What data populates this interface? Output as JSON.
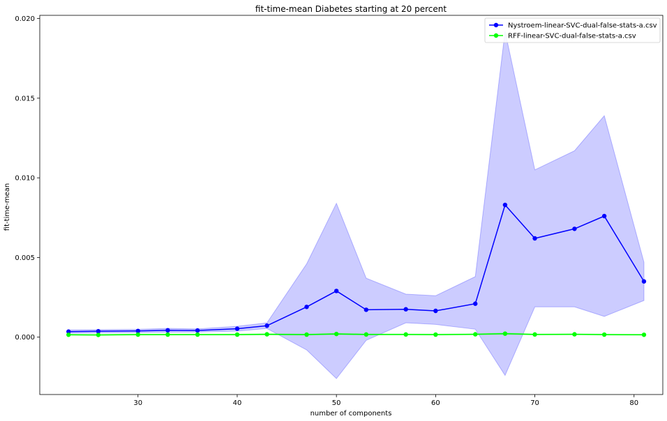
{
  "chart_data": {
    "type": "line",
    "title": "fit-time-mean Diabetes starting at 20 percent",
    "xlabel": "number of components",
    "ylabel": "fit-time-mean",
    "xlim": [
      20.1,
      82.9
    ],
    "ylim": [
      -0.0036,
      0.0202
    ],
    "xticks": [
      30,
      40,
      50,
      60,
      70,
      80
    ],
    "xtick_labels": [
      "30",
      "40",
      "50",
      "60",
      "70",
      "80"
    ],
    "yticks": [
      0.0,
      0.005,
      0.01,
      0.015,
      0.02
    ],
    "ytick_labels": [
      "0.000",
      "0.005",
      "0.010",
      "0.015",
      "0.020"
    ],
    "grid": false,
    "legend_position": "top-right",
    "x": [
      23,
      26,
      30,
      33,
      36,
      40,
      43,
      47,
      50,
      53,
      57,
      60,
      64,
      67,
      70,
      74,
      77,
      81
    ],
    "series": [
      {
        "name": "Nystroem-linear-SVC-dual-false-stats-a.csv",
        "color": "#0000ff",
        "band_color": "#0000ff",
        "values": [
          0.00035,
          0.00037,
          0.00039,
          0.00043,
          0.00042,
          0.00053,
          0.00072,
          0.0019,
          0.0029,
          0.00172,
          0.00175,
          0.00165,
          0.0021,
          0.0083,
          0.0062,
          0.0068,
          0.0076,
          0.0035
        ],
        "upper": [
          0.00045,
          0.00047,
          0.00049,
          0.00055,
          0.00052,
          0.00068,
          0.0009,
          0.0046,
          0.0084,
          0.0037,
          0.0027,
          0.0026,
          0.0038,
          0.0192,
          0.0105,
          0.0117,
          0.0139,
          0.0047
        ],
        "lower": [
          0.00025,
          0.00027,
          0.00029,
          0.00031,
          0.00032,
          0.00038,
          0.00054,
          -0.0008,
          -0.0026,
          -0.0002,
          0.0009,
          0.0008,
          0.0005,
          -0.0024,
          0.0019,
          0.0019,
          0.0013,
          0.0023
        ]
      },
      {
        "name": "RFF-linear-SVC-dual-false-stats-a.csv",
        "color": "#00ff00",
        "band_color": "#00ff00",
        "values": [
          0.00015,
          0.00014,
          0.00016,
          0.00016,
          0.00016,
          0.00016,
          0.00018,
          0.00016,
          0.0002,
          0.00017,
          0.00017,
          0.00016,
          0.00018,
          0.00022,
          0.00017,
          0.00018,
          0.00016,
          0.00015
        ],
        "upper": [
          0.00018,
          0.00017,
          0.00019,
          0.00019,
          0.00019,
          0.00019,
          0.00022,
          0.00019,
          0.00024,
          0.0002,
          0.0002,
          0.00019,
          0.00021,
          0.00026,
          0.0002,
          0.00021,
          0.00019,
          0.00018
        ],
        "lower": [
          0.00012,
          0.00011,
          0.00013,
          0.00013,
          0.00013,
          0.00013,
          0.00014,
          0.00013,
          0.00016,
          0.00014,
          0.00014,
          0.00013,
          0.00015,
          0.00018,
          0.00014,
          0.00015,
          0.00013,
          0.00012
        ]
      }
    ]
  }
}
